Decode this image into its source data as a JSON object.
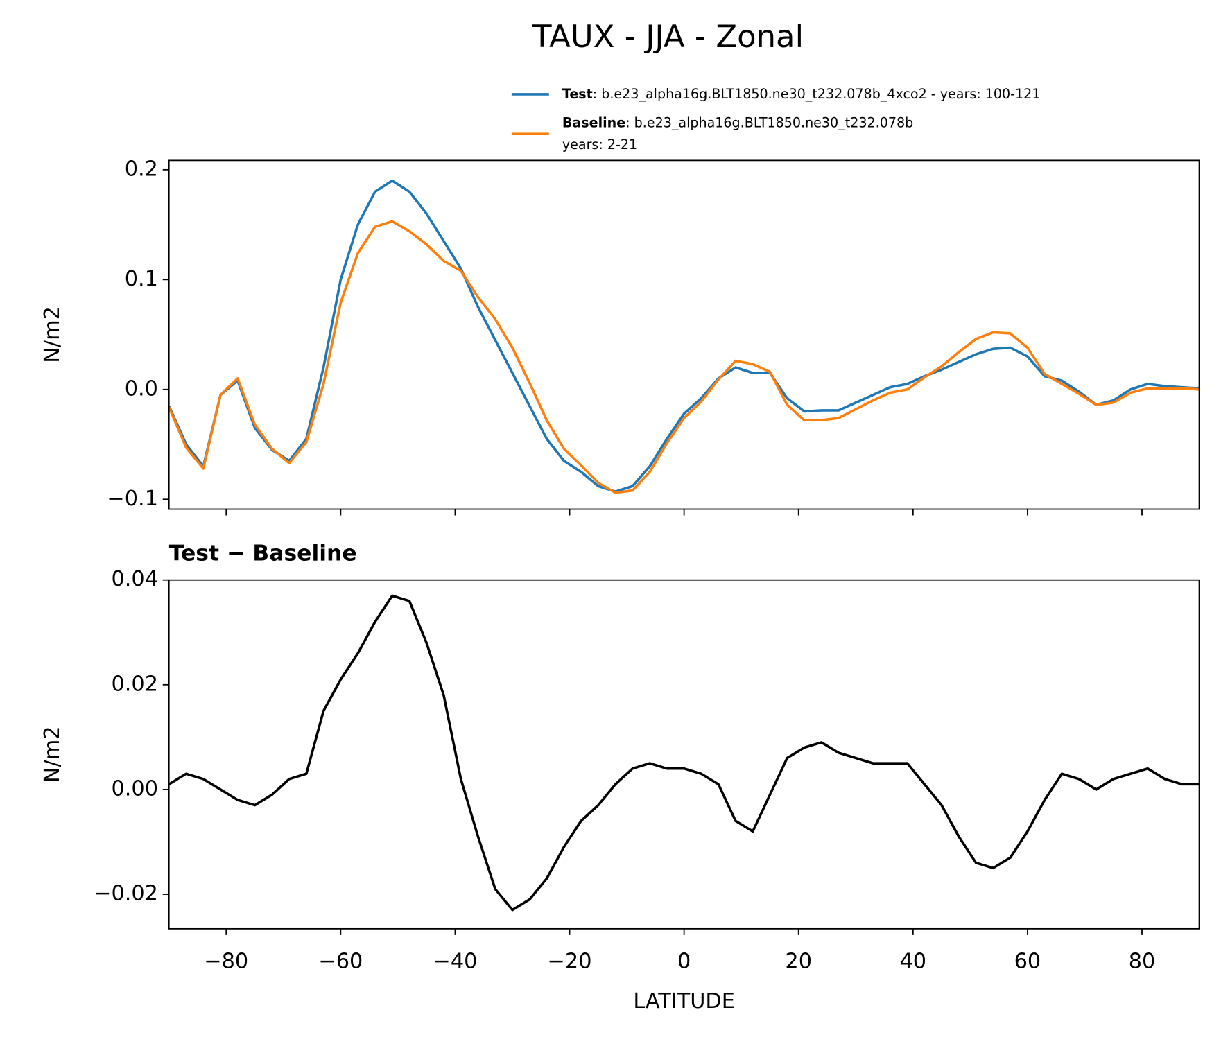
{
  "title": "TAUX - JJA - Zonal",
  "chart_data": [
    {
      "type": "line",
      "ylabel": "N/m2",
      "x": [
        -90,
        -87,
        -84,
        -81,
        -78,
        -75,
        -72,
        -69,
        -66,
        -63,
        -60,
        -57,
        -54,
        -51,
        -48,
        -45,
        -42,
        -39,
        -36,
        -33,
        -30,
        -27,
        -24,
        -21,
        -18,
        -15,
        -12,
        -9,
        -6,
        -3,
        0,
        3,
        6,
        9,
        12,
        15,
        18,
        21,
        24,
        27,
        30,
        33,
        36,
        39,
        42,
        45,
        48,
        51,
        54,
        57,
        60,
        63,
        66,
        69,
        72,
        75,
        78,
        81,
        84,
        87,
        90
      ],
      "series": [
        {
          "name": "Test",
          "description": ": b.e23_alpha16g.BLT1850.ne30_t232.078b_4xco2 - years: 100-121",
          "color": "#1f77b4",
          "values": [
            -0.015,
            -0.05,
            -0.07,
            -0.005,
            0.008,
            -0.035,
            -0.055,
            -0.065,
            -0.045,
            0.02,
            0.1,
            0.15,
            0.18,
            0.19,
            0.18,
            0.16,
            0.135,
            0.11,
            0.075,
            0.045,
            0.015,
            -0.015,
            -0.045,
            -0.065,
            -0.075,
            -0.088,
            -0.093,
            -0.088,
            -0.07,
            -0.045,
            -0.022,
            -0.008,
            0.01,
            0.02,
            0.015,
            0.015,
            -0.008,
            -0.02,
            -0.019,
            -0.019,
            -0.012,
            -0.005,
            0.002,
            0.005,
            0.012,
            0.018,
            0.025,
            0.032,
            0.037,
            0.038,
            0.03,
            0.012,
            0.008,
            -0.002,
            -0.014,
            -0.01,
            0.0,
            0.005,
            0.003,
            0.002,
            0.001
          ]
        },
        {
          "name": "Baseline",
          "description": [
            ": b.e23_alpha16g.BLT1850.ne30_t232.078b",
            "years: 2-21"
          ],
          "color": "#ff7f0e",
          "values": [
            -0.016,
            -0.053,
            -0.072,
            -0.005,
            0.01,
            -0.032,
            -0.054,
            -0.067,
            -0.048,
            0.005,
            0.079,
            0.124,
            0.148,
            0.153,
            0.144,
            0.132,
            0.117,
            0.108,
            0.084,
            0.064,
            0.038,
            0.006,
            -0.028,
            -0.054,
            -0.069,
            -0.085,
            -0.094,
            -0.092,
            -0.075,
            -0.049,
            -0.026,
            -0.011,
            0.009,
            0.026,
            0.023,
            0.016,
            -0.014,
            -0.028,
            -0.028,
            -0.026,
            -0.018,
            -0.01,
            -0.003,
            0.0,
            0.011,
            0.021,
            0.034,
            0.046,
            0.052,
            0.051,
            0.038,
            0.014,
            0.005,
            -0.004,
            -0.014,
            -0.012,
            -0.003,
            0.001,
            0.001,
            0.001,
            0.0
          ]
        }
      ],
      "xlim": [
        -90,
        90
      ],
      "xticks": [
        -80,
        -60,
        -40,
        -20,
        0,
        20,
        40,
        60,
        80
      ],
      "ylim": [
        -0.109,
        0.2085
      ],
      "yticks": [
        {
          "value": -0.1,
          "label": "−0.1"
        },
        {
          "value": 0,
          "label": "0.0"
        },
        0.1,
        0.2
      ]
    },
    {
      "type": "line",
      "title": "Test − Baseline",
      "xlabel": "LATITUDE",
      "ylabel": "N/m2",
      "x": [
        -90,
        -87,
        -84,
        -81,
        -78,
        -75,
        -72,
        -69,
        -66,
        -63,
        -60,
        -57,
        -54,
        -51,
        -48,
        -45,
        -42,
        -39,
        -36,
        -33,
        -30,
        -27,
        -24,
        -21,
        -18,
        -15,
        -12,
        -9,
        -6,
        -3,
        0,
        3,
        6,
        9,
        12,
        15,
        18,
        21,
        24,
        27,
        30,
        33,
        36,
        39,
        42,
        45,
        48,
        51,
        54,
        57,
        60,
        63,
        66,
        69,
        72,
        75,
        78,
        81,
        84,
        87,
        90
      ],
      "series": [
        {
          "color": "#000000",
          "values": [
            0.001,
            0.003,
            0.002,
            0.0,
            -0.002,
            -0.003,
            -0.001,
            0.002,
            0.003,
            0.015,
            0.021,
            0.026,
            0.032,
            0.037,
            0.036,
            0.028,
            0.018,
            0.002,
            -0.009,
            -0.019,
            -0.023,
            -0.021,
            -0.017,
            -0.011,
            -0.006,
            -0.003,
            0.001,
            0.004,
            0.005,
            0.004,
            0.004,
            0.003,
            0.001,
            -0.006,
            -0.008,
            -0.001,
            0.006,
            0.008,
            0.009,
            0.007,
            0.006,
            0.005,
            0.005,
            0.005,
            0.001,
            -0.003,
            -0.009,
            -0.014,
            -0.015,
            -0.013,
            -0.008,
            -0.002,
            0.003,
            0.002,
            0.0,
            0.002,
            0.003,
            0.004,
            0.002,
            0.001,
            0.001
          ]
        }
      ],
      "xlim": [
        -90,
        90
      ],
      "xticks": [
        {
          "value": -80,
          "label": "−80"
        },
        {
          "value": -60,
          "label": "−60"
        },
        {
          "value": -40,
          "label": "−40"
        },
        {
          "value": -20,
          "label": "−20"
        },
        0,
        20,
        40,
        60,
        80
      ],
      "ylim": [
        -0.0266,
        0.04
      ],
      "yticks": [
        {
          "value": -0.02,
          "label": "−0.02"
        },
        {
          "value": 0,
          "label": "0.00"
        },
        {
          "value": 0.02,
          "label": "0.02"
        },
        {
          "value": 0.04,
          "label": "0.04"
        }
      ]
    }
  ]
}
